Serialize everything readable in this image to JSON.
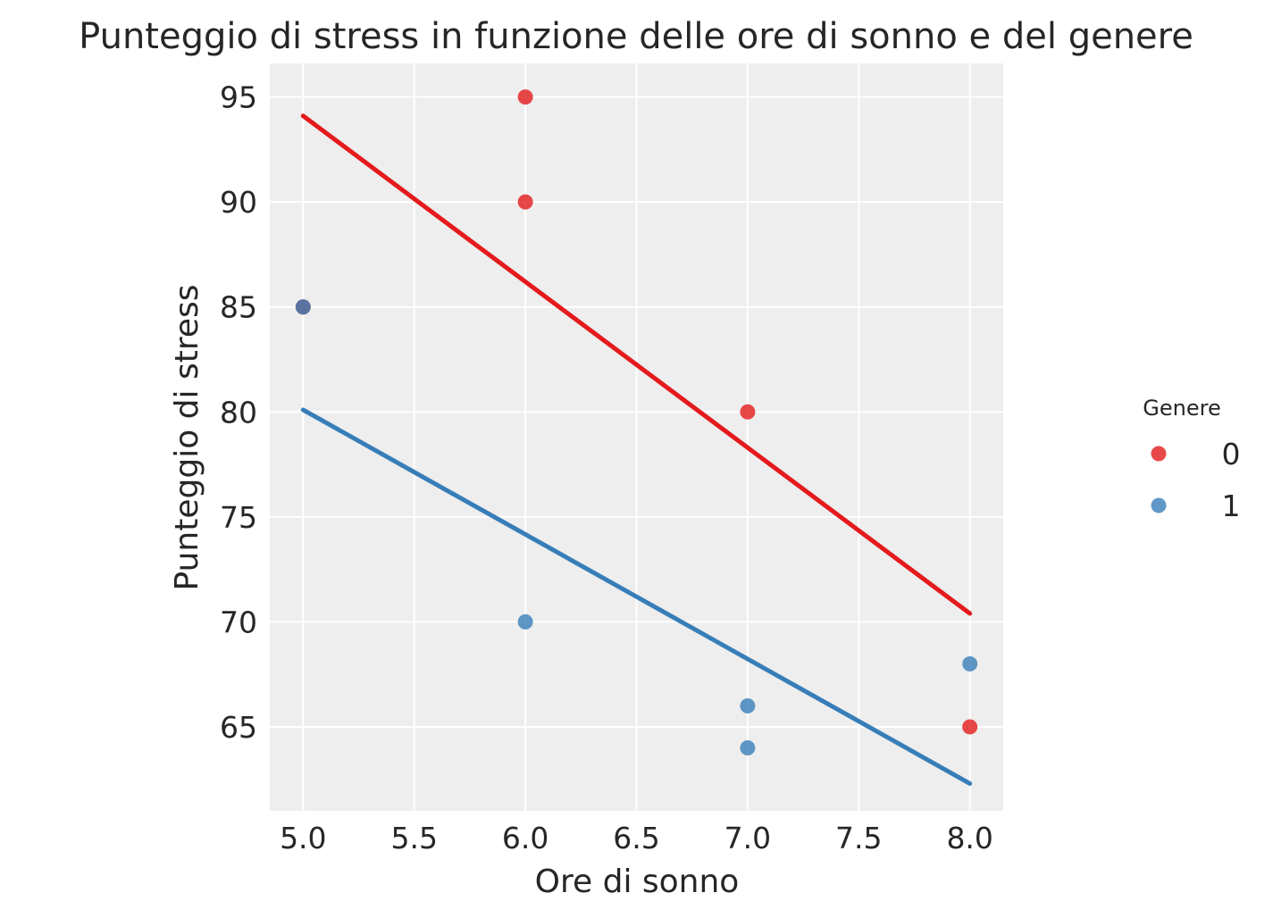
{
  "chart_data": {
    "type": "scatter",
    "title": "Punteggio di stress in funzione delle ore di sonno e del genere",
    "xlabel": "Ore di sonno",
    "ylabel": "Punteggio di stress",
    "xlim": [
      4.85,
      8.15
    ],
    "ylim": [
      61,
      96.6
    ],
    "xticks": [
      5.0,
      5.5,
      6.0,
      6.5,
      7.0,
      7.5,
      8.0
    ],
    "xtick_labels": [
      "5.0",
      "5.5",
      "6.0",
      "6.5",
      "7.0",
      "7.5",
      "8.0"
    ],
    "yticks": [
      65,
      70,
      75,
      80,
      85,
      90,
      95
    ],
    "ytick_labels": [
      "65",
      "70",
      "75",
      "80",
      "85",
      "90",
      "95"
    ],
    "grid": true,
    "legend": {
      "title": "Genere",
      "placement": "right"
    },
    "background_color": "#eeeeee",
    "series": [
      {
        "name": "0",
        "color": "#e41a1c",
        "points": [
          {
            "x": 5,
            "y": 85
          },
          {
            "x": 6,
            "y": 95
          },
          {
            "x": 6,
            "y": 90
          },
          {
            "x": 7,
            "y": 80
          },
          {
            "x": 8,
            "y": 65
          }
        ],
        "fit_line": [
          {
            "x": 5,
            "y": 94.1
          },
          {
            "x": 8,
            "y": 70.4
          }
        ]
      },
      {
        "name": "1",
        "color": "#377eb8",
        "points": [
          {
            "x": 5,
            "y": 85
          },
          {
            "x": 6,
            "y": 70
          },
          {
            "x": 7,
            "y": 66
          },
          {
            "x": 7,
            "y": 64
          },
          {
            "x": 8,
            "y": 68
          }
        ],
        "fit_line": [
          {
            "x": 5,
            "y": 80.1
          },
          {
            "x": 8,
            "y": 62.3
          }
        ]
      }
    ]
  }
}
